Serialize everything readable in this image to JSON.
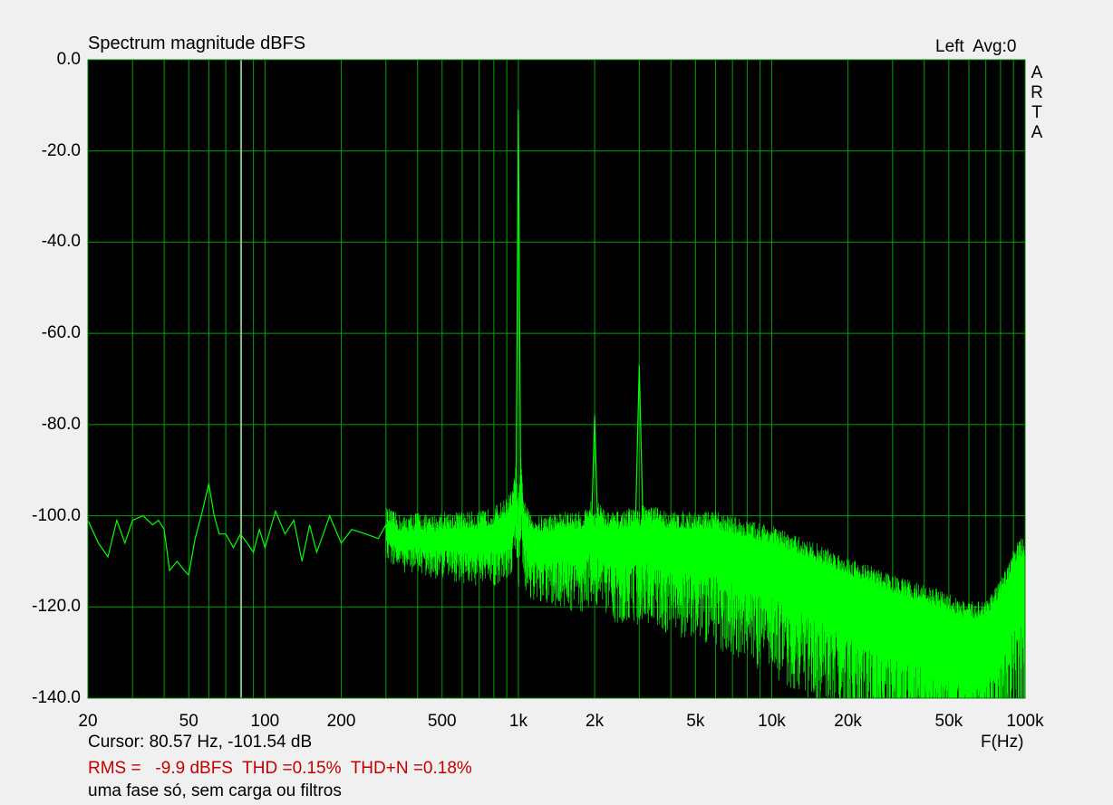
{
  "window": {
    "title": "Spectrum magnitude dBFS",
    "channel_info": "Left  Avg:0",
    "brand_letters": [
      "A",
      "R",
      "T",
      "A"
    ]
  },
  "status": {
    "cursor": "Cursor: 80.57 Hz, -101.54 dB",
    "x_unit": "F(Hz)",
    "measurement": "RMS =   -9.9 dBFS  THD =0.15%  THD+N =0.18%",
    "note": "uma fase só, sem carga ou filtros"
  },
  "colors": {
    "plot_background": "#000000",
    "grid": "#00a000",
    "trace": "#00ff00",
    "cursor_line": "#ffffff",
    "measurement_text": "#c00000"
  },
  "chart_data": {
    "type": "line",
    "title": "Spectrum magnitude dBFS",
    "xlabel": "F(Hz)",
    "ylabel": "",
    "x_scale": "log",
    "xlim": [
      20,
      100000
    ],
    "ylim": [
      -140,
      0
    ],
    "grid": true,
    "y_ticks": [
      0,
      -20,
      -40,
      -60,
      -80,
      -100,
      -120,
      -140
    ],
    "y_tick_labels": [
      "0.0",
      "-20.0",
      "-40.0",
      "-60.0",
      "-80.0",
      "-100.0",
      "-120.0",
      "-140.0"
    ],
    "x_ticks": [
      20,
      50,
      100,
      200,
      500,
      1000,
      2000,
      5000,
      10000,
      20000,
      50000,
      100000
    ],
    "x_tick_labels": [
      "20",
      "50",
      "100",
      "200",
      "500",
      "1k",
      "2k",
      "5k",
      "10k",
      "20k",
      "50k",
      "100k"
    ],
    "cursor_frequency_hz": 80.57,
    "cursor_level_db": -101.54,
    "series": [
      {
        "x": [
          20,
          22,
          24,
          26,
          28,
          30,
          33,
          36,
          38,
          40,
          42,
          45,
          48,
          50,
          53,
          56,
          60,
          63,
          66,
          70,
          75,
          80,
          85,
          90,
          95,
          100,
          110,
          120,
          130,
          140,
          150,
          160,
          170,
          180,
          200,
          220,
          250,
          280,
          300,
          350,
          400,
          450,
          500,
          600,
          700,
          800,
          900,
          950,
          980,
          1000,
          1020,
          1050,
          1100,
          1200,
          1500,
          1800,
          1950,
          2000,
          2050,
          2200,
          2500,
          2900,
          3000,
          3100,
          3500,
          4000,
          5000,
          6000,
          7000,
          8000,
          10000,
          12000,
          15000,
          20000,
          25000,
          30000,
          40000,
          50000,
          60000,
          70000,
          80000,
          85000,
          90000,
          95000,
          100000
        ],
        "y": [
          -101,
          -106,
          -109,
          -101,
          -106,
          -101,
          -100,
          -102,
          -101,
          -103,
          -112,
          -110,
          -112,
          -113,
          -105,
          -100,
          -93,
          -100,
          -104,
          -104,
          -107,
          -104,
          -106,
          -108,
          -103,
          -107,
          -99,
          -104,
          -101,
          -110,
          -102,
          -108,
          -104,
          -100,
          -106,
          -103,
          -104,
          -105,
          -102,
          -104,
          -103,
          -104,
          -103,
          -103,
          -103,
          -102,
          -100,
          -98,
          -92,
          -11,
          -90,
          -100,
          -103,
          -104,
          -103,
          -103,
          -100,
          -78,
          -100,
          -103,
          -103,
          -102,
          -67,
          -101,
          -102,
          -103,
          -103,
          -103,
          -104,
          -105,
          -106,
          -108,
          -110,
          -113,
          -115,
          -117,
          -119,
          -121,
          -123,
          -122,
          -118,
          -115,
          -111,
          -109,
          -109
        ]
      }
    ]
  }
}
